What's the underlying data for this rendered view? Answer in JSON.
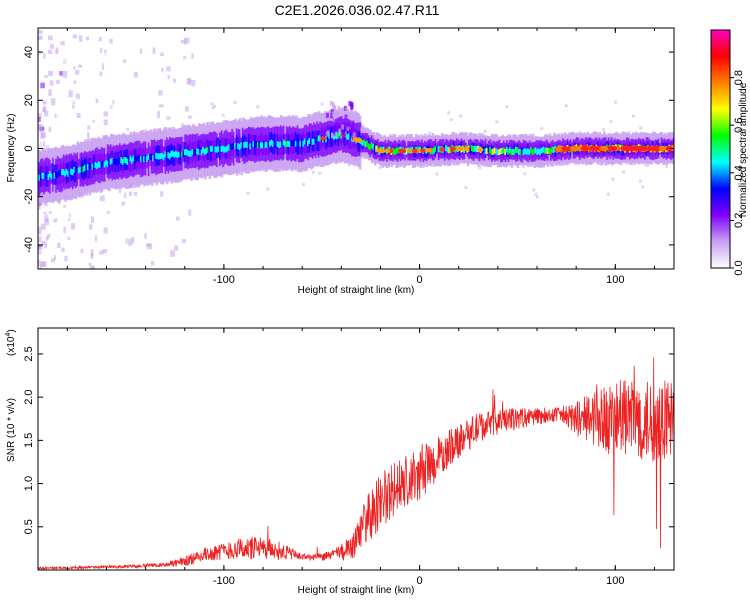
{
  "title": "C2E1.2026.036.02.47.R11",
  "chart_data": [
    {
      "type": "heatmap",
      "name": "spectrogram",
      "xlabel": "Height of straight line (km)",
      "ylabel": "Frequency (Hz)",
      "xlim": [
        -195,
        130
      ],
      "ylim": [
        -50,
        50
      ],
      "xticks": [
        -100,
        0,
        100
      ],
      "yticks": [
        -40,
        -20,
        0,
        20,
        40
      ],
      "xtick_labels": [
        "-100",
        "0",
        "100"
      ],
      "ytick_labels": [
        "-40",
        "-20",
        "0",
        "20",
        "40"
      ],
      "ridge_frequency": {
        "x": [
          -195,
          -180,
          -160,
          -140,
          -120,
          -100,
          -80,
          -60,
          -50,
          -40,
          -30,
          -20,
          -10,
          0,
          20,
          40,
          60,
          80,
          100,
          130
        ],
        "y": [
          -12,
          -10,
          -6,
          -4,
          -2,
          0,
          2,
          2,
          4,
          6,
          3,
          -1,
          -1,
          -1,
          0,
          -1,
          -1,
          0,
          0,
          0
        ]
      },
      "colorbar": {
        "label": "Normalized spectral amplitude",
        "range": [
          0,
          1
        ],
        "ticks": [
          0.0,
          0.2,
          0.4,
          0.6,
          0.8
        ],
        "tick_labels": [
          "0.0",
          "0.2",
          "0.4",
          "0.6",
          "0.8"
        ],
        "colors": [
          "#ffffff",
          "#c8a0f0",
          "#8000ff",
          "#0000ff",
          "#00ffff",
          "#00ff00",
          "#ffff00",
          "#ff8000",
          "#ff0000",
          "#ff00c0"
        ]
      }
    },
    {
      "type": "line",
      "name": "snr",
      "xlabel": "Height of straight line (km)",
      "ylabel": "SNR (10 * v/v)",
      "multiplier": "(x10",
      "multiplier_exp": "4",
      "multiplier_close": ")",
      "xlim": [
        -195,
        130
      ],
      "ylim": [
        0,
        2.8
      ],
      "xticks": [
        -100,
        0,
        100
      ],
      "yticks": [
        0.5,
        1.0,
        1.5,
        2.0,
        2.5
      ],
      "xtick_labels": [
        "-100",
        "0",
        "100"
      ],
      "ytick_labels": [
        "0.5",
        "1.0",
        "1.5",
        "2.0",
        "2.5"
      ],
      "color": "#ee2222",
      "trend": {
        "x": [
          -195,
          -170,
          -150,
          -130,
          -120,
          -110,
          -100,
          -90,
          -80,
          -70,
          -60,
          -50,
          -40,
          -33,
          -28,
          -20,
          -10,
          0,
          10,
          20,
          30,
          40,
          50,
          60,
          70,
          80,
          90,
          100,
          110,
          120,
          130
        ],
        "y": [
          0.02,
          0.03,
          0.04,
          0.06,
          0.1,
          0.18,
          0.22,
          0.25,
          0.25,
          0.22,
          0.15,
          0.15,
          0.2,
          0.3,
          0.55,
          0.8,
          0.95,
          1.1,
          1.3,
          1.5,
          1.65,
          1.72,
          1.75,
          1.78,
          1.8,
          1.75,
          1.75,
          1.75,
          1.75,
          1.7,
          1.75
        ]
      },
      "noise": {
        "x": [
          -195,
          -130,
          -125,
          -100,
          -85,
          -70,
          -60,
          -45,
          -35,
          -25,
          -15,
          0,
          20,
          40,
          60,
          70,
          80,
          90,
          100,
          110,
          120,
          130
        ],
        "y": [
          0.01,
          0.02,
          0.05,
          0.1,
          0.14,
          0.1,
          0.04,
          0.05,
          0.15,
          0.3,
          0.35,
          0.3,
          0.2,
          0.15,
          0.1,
          0.08,
          0.2,
          0.35,
          0.45,
          0.45,
          0.5,
          0.45
        ]
      }
    }
  ]
}
